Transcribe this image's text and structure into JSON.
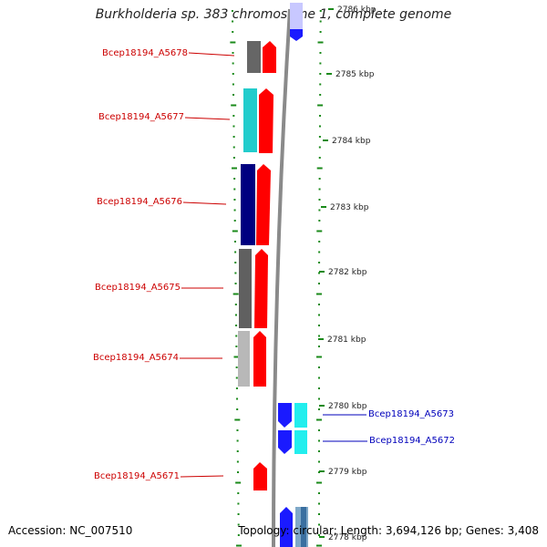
{
  "title": "Burkholderia sp. 383 chromosome 1, complete genome",
  "footer": {
    "accession": "Accession: NC_007510",
    "stats": "Topology: circular; Length: 3,694,126 bp; Genes: 3,408"
  },
  "colors": {
    "label_left": "#cc0000",
    "label_right": "#0000bb",
    "tick": "#1a8a1a",
    "backbone": "#888888",
    "arrow_red": "#ff0000",
    "arrow_blue": "#1a1aff",
    "cyan": "#22dddd",
    "navy": "#000080",
    "dark_gray": "#666666",
    "light_gray": "#b8b8b8",
    "pale_blue": "#c8c8ff"
  },
  "kbp_labels": [
    "2786 kbp",
    "2785 kbp",
    "2784 kbp",
    "2783 kbp",
    "2782 kbp",
    "2781 kbp",
    "2780 kbp",
    "2779 kbp",
    "2778 kbp"
  ],
  "genes": [
    {
      "label": "Bcep18194_A5678",
      "strand": "left"
    },
    {
      "label": "Bcep18194_A5677",
      "strand": "left"
    },
    {
      "label": "Bcep18194_A5676",
      "strand": "left"
    },
    {
      "label": "Bcep18194_A5675",
      "strand": "left"
    },
    {
      "label": "Bcep18194_A5674",
      "strand": "left"
    },
    {
      "label": "Bcep18194_A5673",
      "strand": "right"
    },
    {
      "label": "Bcep18194_A5672",
      "strand": "right"
    },
    {
      "label": "Bcep18194_A5671",
      "strand": "left"
    }
  ]
}
